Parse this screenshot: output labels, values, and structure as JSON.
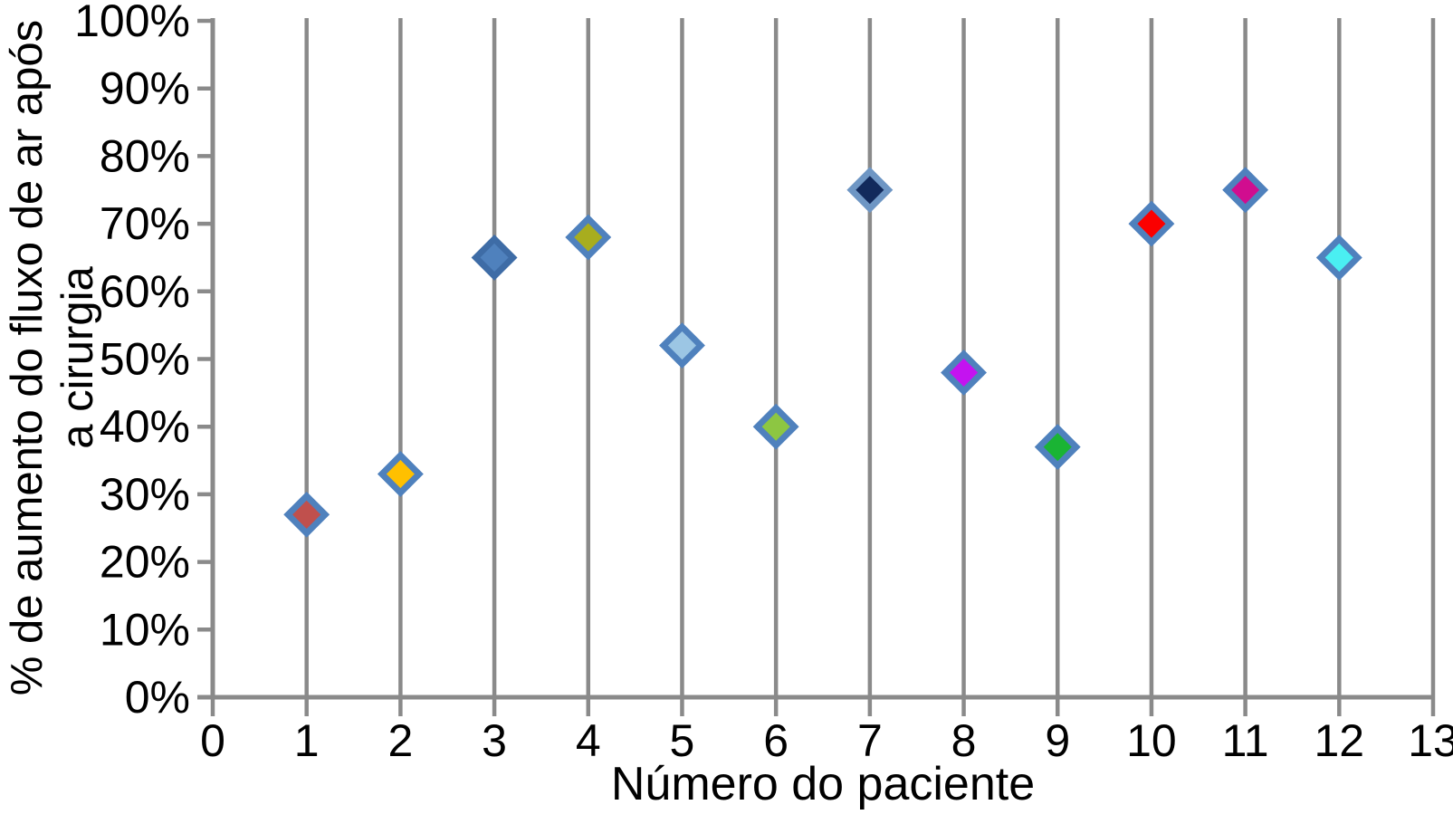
{
  "chart_data": {
    "type": "scatter",
    "title": "",
    "xlabel": "Número do paciente",
    "ylabel": "% de aumento do fluxo de ar após a cirurgia",
    "ylabel_lines": [
      "% de aumento do fluxo de ar após",
      "a cirurgia"
    ],
    "xlim": [
      0,
      13
    ],
    "ylim": [
      0,
      100
    ],
    "xticks": [
      0,
      1,
      2,
      3,
      4,
      5,
      6,
      7,
      8,
      9,
      10,
      11,
      12,
      13
    ],
    "yticks": [
      0,
      10,
      20,
      30,
      40,
      50,
      60,
      70,
      80,
      90,
      100
    ],
    "ytick_labels": [
      "0%",
      "10%",
      "20%",
      "30%",
      "40%",
      "50%",
      "60%",
      "70%",
      "80%",
      "90%",
      "100%"
    ],
    "grid": "vertical-gridlines-only",
    "legend": "none",
    "marker": "diamond",
    "axis_color": "#8A8A8A",
    "tick_label_color": "#000000",
    "default_marker_border_color": "#4F81BD",
    "points": [
      {
        "x": 1,
        "y": 27,
        "color": "#C0504D",
        "border": "#4F81BD"
      },
      {
        "x": 2,
        "y": 33,
        "color": "#FFC000",
        "border": "#4F81BD"
      },
      {
        "x": 3,
        "y": 65,
        "color": "#4F81BD",
        "border": "#3E6CA6"
      },
      {
        "x": 4,
        "y": 68,
        "color": "#A8AD1E",
        "border": "#4F81BD"
      },
      {
        "x": 5,
        "y": 52,
        "color": "#9CC6E4",
        "border": "#4F81BD"
      },
      {
        "x": 6,
        "y": 40,
        "color": "#8DC642",
        "border": "#4F81BD"
      },
      {
        "x": 7,
        "y": 75,
        "color": "#122A5C",
        "border": "#6E96C4"
      },
      {
        "x": 8,
        "y": 48,
        "color": "#C413F0",
        "border": "#4F81BD"
      },
      {
        "x": 9,
        "y": 37,
        "color": "#1AB434",
        "border": "#4F81BD"
      },
      {
        "x": 10,
        "y": 70,
        "color": "#FB0000",
        "border": "#4F81BD"
      },
      {
        "x": 11,
        "y": 75,
        "color": "#D10D8F",
        "border": "#4F81BD"
      },
      {
        "x": 12,
        "y": 65,
        "color": "#4AEFF2",
        "border": "#4F81BD"
      }
    ]
  }
}
